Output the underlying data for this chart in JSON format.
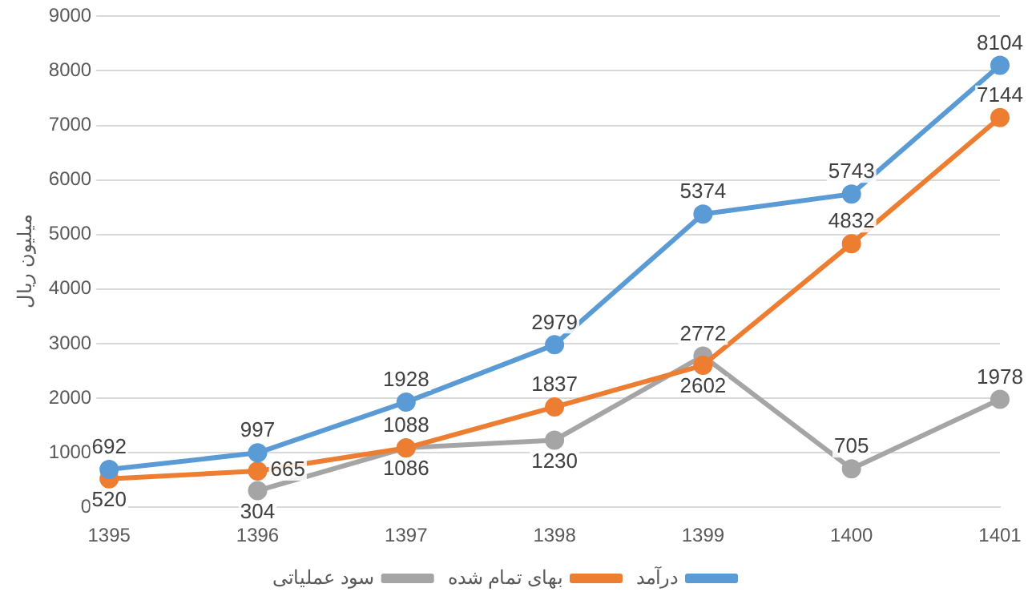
{
  "chart_data": {
    "type": "line",
    "ylabel": "میلیون ریال",
    "categories": [
      "1395",
      "1396",
      "1397",
      "1398",
      "1399",
      "1400",
      "1401"
    ],
    "series": [
      {
        "name": "درآمد",
        "color": "#5b9bd5",
        "values": [
          692,
          997,
          1928,
          2979,
          5374,
          5743,
          8104
        ]
      },
      {
        "name": "بهای تمام شده",
        "color": "#ed7d31",
        "values": [
          520,
          665,
          1086,
          1837,
          2602,
          4832,
          7144
        ]
      },
      {
        "name": "سود عملیاتی",
        "color": "#a5a5a5",
        "values": [
          null,
          304,
          1088,
          1230,
          2772,
          705,
          1978
        ]
      }
    ],
    "ylim": [
      0,
      9000
    ],
    "yticks": [
      0,
      1000,
      2000,
      3000,
      4000,
      5000,
      6000,
      7000,
      8000,
      9000
    ],
    "grid": "y",
    "legend": "bottom",
    "marker": "circle",
    "data_labels": true
  }
}
